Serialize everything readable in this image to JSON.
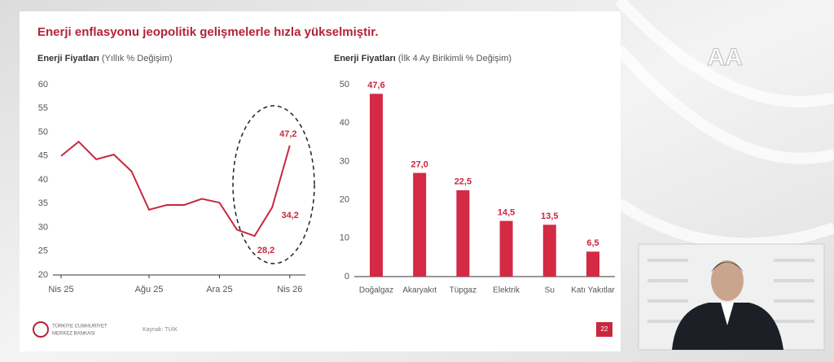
{
  "slide": {
    "title": "Enerji enflasyonu jeopolitik gelişmelerle hızla yükselmiştir.",
    "source": "Kaynak: TÜİK",
    "page": "22",
    "logo_line1": "TÜRKİYE CUMHURİYET",
    "logo_line2": "MERKEZ BANKASI",
    "watermark": "AA"
  },
  "chart_data": [
    {
      "type": "line",
      "title": "Enerji Fiyatları",
      "subtitle": "(Yıllık % Değişim)",
      "categories": [
        "Nis 25",
        null,
        null,
        null,
        null,
        "Ağu 25",
        null,
        null,
        null,
        "Ara 25",
        null,
        null,
        null,
        "Nis 26"
      ],
      "values": [
        45,
        48,
        44.3,
        45.3,
        41.8,
        33.7,
        34.7,
        34.7,
        36,
        35.2,
        29.5,
        28.2,
        34.2,
        47.2
      ],
      "value_labels": [
        null,
        null,
        null,
        null,
        null,
        null,
        null,
        null,
        null,
        null,
        null,
        "28,2",
        "34,2",
        "47,2"
      ],
      "color": "#c9283f",
      "ylim": [
        20,
        60
      ],
      "yticks": [
        20,
        25,
        30,
        35,
        40,
        45,
        50,
        55,
        60
      ]
    },
    {
      "type": "bar",
      "title": "Enerji Fiyatları",
      "subtitle": "(İlk 4 Ay Birikimli % Değişim)",
      "categories": [
        "Doğalgaz",
        "Akaryakıt",
        "Tüpgaz",
        "Elektrik",
        "Su",
        "Katı Yakıtlar"
      ],
      "values": [
        47.6,
        27.0,
        22.5,
        14.5,
        13.5,
        6.5
      ],
      "value_labels": [
        "47,6",
        "27,0",
        "22,5",
        "14,5",
        "13,5",
        "6,5"
      ],
      "color": "#d42a44",
      "ylim": [
        0,
        50
      ],
      "yticks": [
        0,
        10,
        20,
        30,
        40,
        50
      ]
    }
  ]
}
